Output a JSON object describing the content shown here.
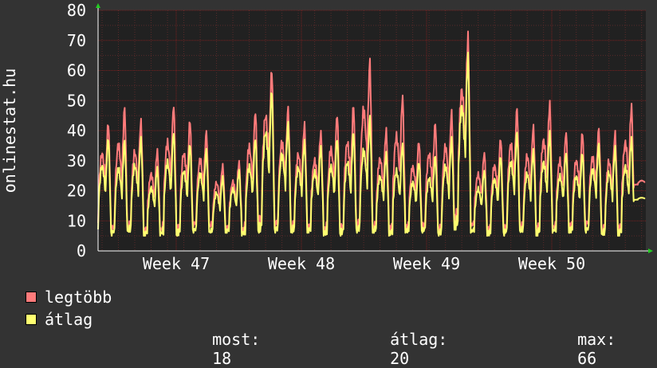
{
  "chart_data": {
    "type": "line",
    "ylabel": "onlinestat.hu",
    "ylim": [
      0,
      80
    ],
    "y_ticks": [
      "0",
      "10",
      "20",
      "30",
      "40",
      "50",
      "60",
      "70",
      "80"
    ],
    "x_ticks": [
      "Week 47",
      "Week 48",
      "Week 49",
      "Week 50"
    ],
    "grid": true,
    "background_color": "#212121",
    "series": [
      {
        "name": "legtöbb",
        "color": "#ff7b7b",
        "daily_peaks": [
          43,
          48,
          44,
          34,
          49,
          44,
          40,
          29,
          30,
          47,
          61,
          48,
          43,
          40,
          46,
          49,
          64,
          41,
          52,
          37,
          43,
          47,
          73,
          33,
          38,
          48,
          42,
          50,
          40,
          40,
          41,
          40,
          49,
          24
        ],
        "daily_lows": [
          8,
          6,
          7,
          6,
          6,
          6,
          8,
          8,
          7,
          6,
          8,
          8,
          7,
          7,
          6,
          6,
          7,
          7,
          6,
          7,
          7,
          6,
          9,
          8,
          6,
          6,
          7,
          6,
          7,
          7,
          8,
          6,
          6,
          22
        ]
      },
      {
        "name": "átlag",
        "color": "#ffff70",
        "daily_peaks": [
          38,
          37,
          38,
          28,
          40,
          36,
          34,
          25,
          27,
          38,
          54,
          43,
          37,
          35,
          38,
          40,
          45,
          33,
          36,
          30,
          32,
          38,
          66,
          27,
          32,
          40,
          34,
          40,
          33,
          33,
          36,
          35,
          38,
          18
        ],
        "daily_lows": [
          6,
          5,
          6,
          5,
          5,
          5,
          6,
          6,
          6,
          5,
          6,
          6,
          6,
          6,
          5,
          5,
          6,
          6,
          5,
          6,
          6,
          5,
          7,
          6,
          5,
          5,
          6,
          5,
          6,
          6,
          6,
          5,
          5,
          17
        ]
      }
    ]
  },
  "legend": [
    {
      "label": "legtöbb",
      "color": "#ff7b7b"
    },
    {
      "label": "átlag",
      "color": "#ffff70"
    }
  ],
  "stats": {
    "most_label": "most:",
    "most_value": "18",
    "atlag_label": "átlag:",
    "atlag_value": "20",
    "max_label": "max:",
    "max_value": "66"
  },
  "colors": {
    "page_background": "#333333",
    "grid_major": "#7a2020",
    "grid_minor": "#5a2a2a",
    "axis_arrow": "#22cc22",
    "text": "#ffffff"
  }
}
